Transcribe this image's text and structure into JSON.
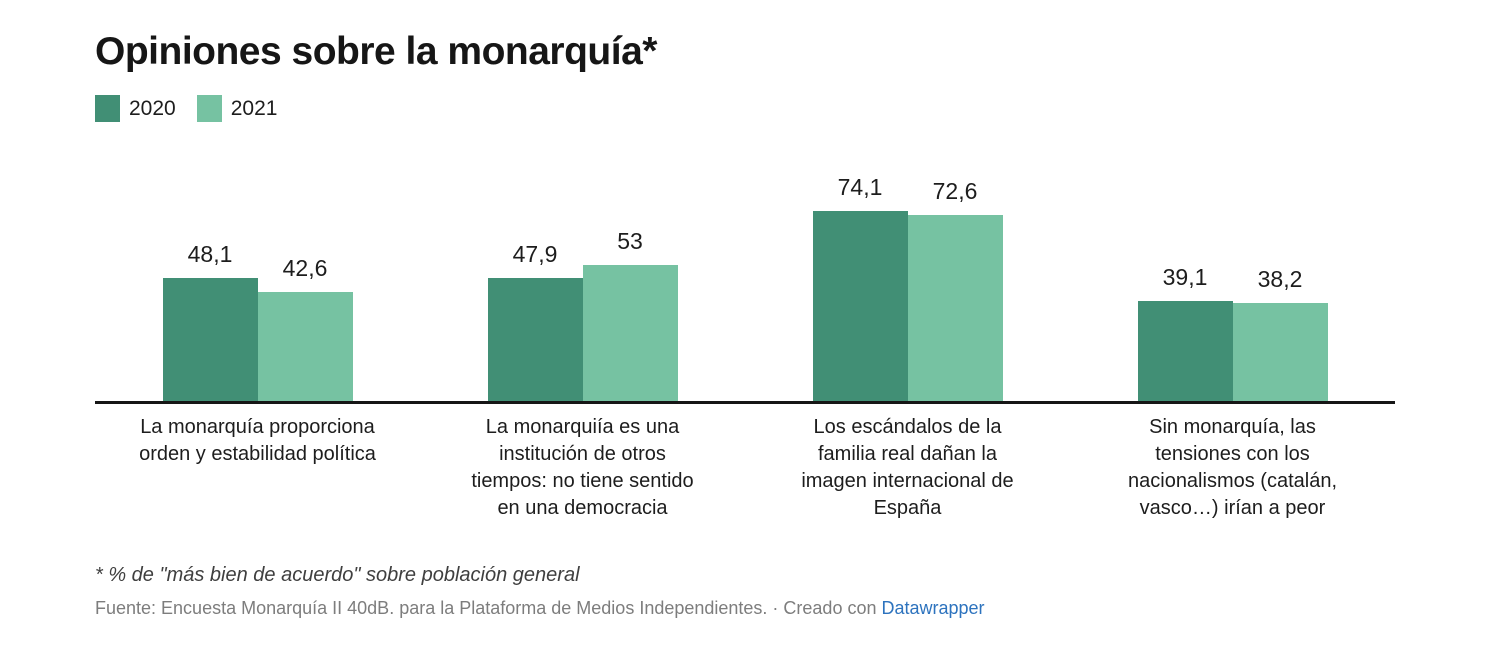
{
  "title": "Opiniones sobre la monarquía*",
  "legend": {
    "items": [
      {
        "label": "2020",
        "color": "#418f75"
      },
      {
        "label": "2021",
        "color": "#76c2a2"
      }
    ]
  },
  "chart_data": {
    "type": "bar",
    "title": "Opiniones sobre la monarquía*",
    "categories": [
      "La monarquía proporciona orden y estabilidad política",
      "La monarquiía es una institución de otros tiempos: no tiene sentido en una democracia",
      "Los escándalos de la familia real dañan la imagen internacional de España",
      "Sin monarquía, las tensiones con los nacionalismos (catalán, vasco…) irían a peor"
    ],
    "category_lines": [
      [
        "La monarquía proporciona",
        "orden y estabilidad política"
      ],
      [
        "La monarquiía es una",
        "institución de otros",
        "tiempos: no tiene sentido",
        "en una democracia"
      ],
      [
        "Los escándalos de la",
        "familia real dañan la",
        "imagen internacional de",
        "España"
      ],
      [
        "Sin monarquía, las",
        "tensiones con los",
        "nacionalismos (catalán,",
        "vasco…) irían a peor"
      ]
    ],
    "series": [
      {
        "name": "2020",
        "color": "#418f75",
        "values": [
          48.1,
          47.9,
          74.1,
          39.1
        ],
        "labels": [
          "48,1",
          "47,9",
          "74,1",
          "39,1"
        ]
      },
      {
        "name": "2021",
        "color": "#76c2a2",
        "values": [
          42.6,
          53,
          72.6,
          38.2
        ],
        "labels": [
          "42,6",
          "53",
          "72,6",
          "38,2"
        ]
      }
    ],
    "unit": "%",
    "ylim": [
      0,
      100
    ],
    "grid": false,
    "value_labels": true,
    "legend_position": "top-left",
    "axis_color": "#161616"
  },
  "footnote": "* % de \"más bien de acuerdo\" sobre población general",
  "source": {
    "text": "Fuente: Encuesta Monarquía II 40dB. para la Plataforma de Medios Independientes. · Creado con ",
    "link_label": "Datawrapper",
    "link_color": "#2d73be"
  }
}
